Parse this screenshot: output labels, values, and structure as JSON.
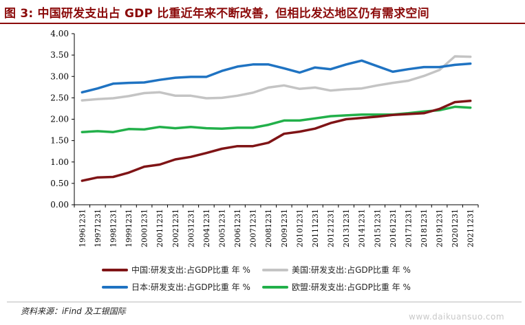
{
  "title": "图 3: 中国研发支出占 GDP 比重近年来不断改善，但相比发达地区仍有需求空间",
  "source": "资料来源：iFind 及工银国际",
  "watermark": "www.daikuansuo.com",
  "chart_data": {
    "type": "line",
    "title": "",
    "xlabel": "",
    "ylabel": "",
    "ylim": [
      0,
      4
    ],
    "yticks": [
      "0.00",
      "0.50",
      "1.00",
      "1.50",
      "2.00",
      "2.50",
      "3.00",
      "3.50",
      "4.00"
    ],
    "grid": false,
    "legend_position": "bottom",
    "categories": [
      "19961231",
      "19971231",
      "19981231",
      "19991231",
      "20001231",
      "20011231",
      "20021231",
      "20031231",
      "20041231",
      "20051231",
      "20061231",
      "20071231",
      "20081231",
      "20091231",
      "20101231",
      "20111231",
      "20121231",
      "20131231",
      "20141231",
      "20151231",
      "20161231",
      "20171231",
      "20181231",
      "20191231",
      "20201231",
      "20211231"
    ],
    "series": [
      {
        "name": "中国:研发支出:占GDP比重 年 %",
        "color": "#7f1416",
        "values": [
          0.56,
          0.64,
          0.65,
          0.75,
          0.89,
          0.94,
          1.06,
          1.12,
          1.21,
          1.31,
          1.37,
          1.37,
          1.45,
          1.66,
          1.71,
          1.78,
          1.91,
          2.0,
          2.03,
          2.06,
          2.1,
          2.12,
          2.14,
          2.24,
          2.4,
          2.43
        ]
      },
      {
        "name": "美国:研发支出:占GDP比重 年 %",
        "color": "#c4c4c4",
        "values": [
          2.44,
          2.47,
          2.49,
          2.54,
          2.61,
          2.63,
          2.55,
          2.55,
          2.49,
          2.5,
          2.55,
          2.62,
          2.74,
          2.79,
          2.71,
          2.74,
          2.67,
          2.7,
          2.72,
          2.79,
          2.85,
          2.9,
          3.01,
          3.15,
          3.47,
          3.46
        ]
      },
      {
        "name": "日本:研发支出:占GDP比重 年 %",
        "color": "#1f73c2",
        "values": [
          2.63,
          2.72,
          2.83,
          2.85,
          2.86,
          2.92,
          2.97,
          2.99,
          2.99,
          3.13,
          3.23,
          3.28,
          3.28,
          3.19,
          3.09,
          3.21,
          3.17,
          3.28,
          3.37,
          3.24,
          3.11,
          3.17,
          3.22,
          3.22,
          3.27,
          3.3
        ]
      },
      {
        "name": "欧盟:研发支出:占GDP比重 年 %",
        "color": "#22b04a",
        "values": [
          1.7,
          1.72,
          1.7,
          1.77,
          1.76,
          1.82,
          1.79,
          1.82,
          1.79,
          1.78,
          1.8,
          1.8,
          1.87,
          1.97,
          1.97,
          2.02,
          2.07,
          2.09,
          2.11,
          2.11,
          2.11,
          2.14,
          2.18,
          2.21,
          2.29,
          2.27
        ]
      }
    ]
  }
}
